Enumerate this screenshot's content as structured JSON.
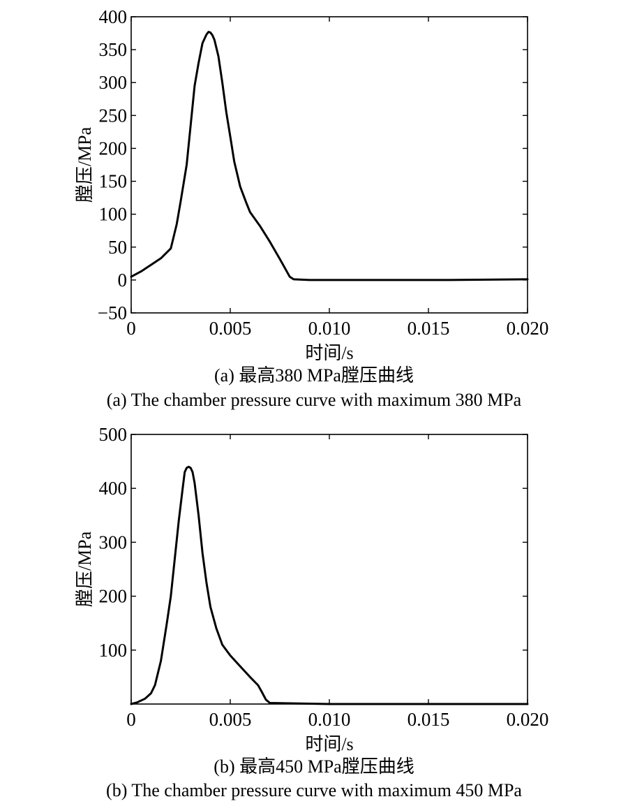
{
  "chart_data": [
    {
      "type": "line",
      "xlabel": "时间/s",
      "ylabel": "膛压/MPa",
      "xlim": [
        0,
        0.02
      ],
      "ylim": [
        -50,
        400
      ],
      "xticks": [
        0,
        0.005,
        0.01,
        0.015,
        0.02
      ],
      "xtick_labels": [
        "0",
        "0.005",
        "0.010",
        "0.015",
        "0.020"
      ],
      "yticks": [
        -50,
        0,
        50,
        100,
        150,
        200,
        250,
        300,
        350,
        400
      ],
      "ytick_labels": [
        "−50",
        "0",
        "50",
        "100",
        "150",
        "200",
        "250",
        "300",
        "350",
        "400"
      ],
      "grid": false,
      "caption_cn": "(a) 最高380 MPa膛压曲线",
      "caption_en": "(a) The chamber pressure curve with maximum 380 MPa",
      "series": [
        {
          "color": "#000000",
          "x": [
            0,
            0.0005,
            0.001,
            0.0015,
            0.002,
            0.0023,
            0.0025,
            0.0028,
            0.003,
            0.0032,
            0.0034,
            0.0036,
            0.0038,
            0.0039,
            0.004,
            0.0041,
            0.0042,
            0.0044,
            0.0046,
            0.0048,
            0.005,
            0.0052,
            0.0055,
            0.0058,
            0.006,
            0.0065,
            0.007,
            0.0075,
            0.008,
            0.0082,
            0.009,
            0.012,
            0.016,
            0.02
          ],
          "y": [
            5,
            13,
            23,
            33,
            48,
            85,
            120,
            175,
            235,
            295,
            330,
            360,
            373,
            377,
            376,
            372,
            365,
            340,
            300,
            255,
            218,
            180,
            142,
            118,
            103,
            82,
            58,
            32,
            5,
            1,
            0,
            0,
            0,
            1
          ]
        }
      ]
    },
    {
      "type": "line",
      "xlabel": "时间/s",
      "ylabel": "膛压/MPa",
      "xlim": [
        0,
        0.02
      ],
      "ylim": [
        0,
        500
      ],
      "xticks": [
        0,
        0.005,
        0.01,
        0.015,
        0.02
      ],
      "xtick_labels": [
        "0",
        "0.005",
        "0.010",
        "0.015",
        "0.020"
      ],
      "yticks": [
        100,
        200,
        300,
        400,
        500
      ],
      "ytick_labels": [
        "100",
        "200",
        "300",
        "400",
        "500"
      ],
      "grid": false,
      "caption_cn": "(b) 最高450 MPa膛压曲线",
      "caption_en": "(b) The chamber pressure curve with maximum 450 MPa",
      "series": [
        {
          "color": "#000000",
          "x": [
            0,
            0.0003,
            0.0007,
            0.001,
            0.0012,
            0.0015,
            0.0018,
            0.002,
            0.0022,
            0.0024,
            0.0026,
            0.0027,
            0.0028,
            0.0029,
            0.003,
            0.0031,
            0.0032,
            0.0034,
            0.0036,
            0.0038,
            0.004,
            0.0043,
            0.0046,
            0.005,
            0.0055,
            0.006,
            0.0064,
            0.0066,
            0.0068,
            0.007,
            0.01,
            0.015,
            0.02
          ],
          "y": [
            0,
            3,
            10,
            20,
            35,
            80,
            150,
            200,
            270,
            340,
            400,
            430,
            438,
            440,
            438,
            430,
            410,
            350,
            280,
            225,
            180,
            140,
            110,
            90,
            70,
            50,
            35,
            22,
            8,
            2,
            0,
            0,
            0
          ]
        }
      ]
    }
  ]
}
